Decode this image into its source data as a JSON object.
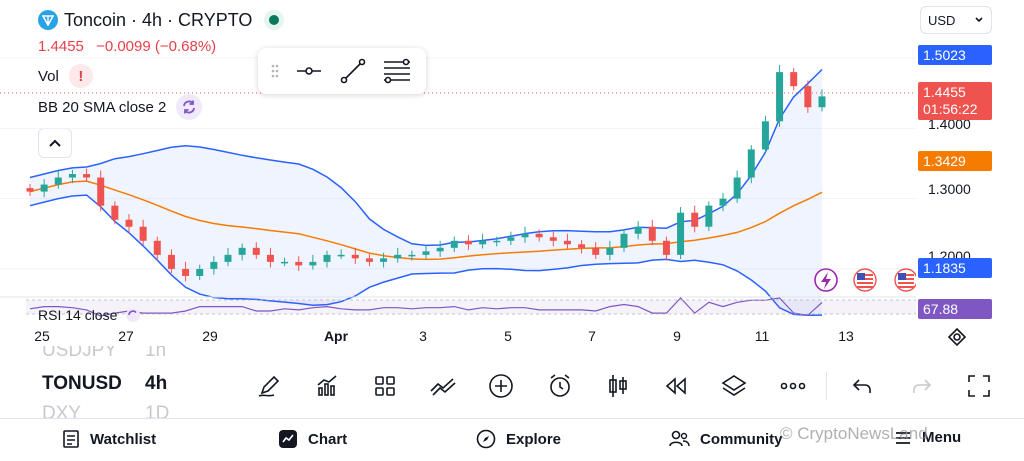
{
  "header": {
    "symbol_title": "Toncoin · 4h · CRYPTO",
    "price": "1.4455",
    "change": "−0.0099 (−0.68%)",
    "currency": "USD"
  },
  "indicators": {
    "volume_label": "Vol",
    "volume_warning": "!",
    "bb_label": "BB 20 SMA close 2",
    "rsi_label": "RSI 14 close"
  },
  "price_axis": {
    "bb_upper_tag": "1.5023",
    "last_price_tag": "1.4455",
    "countdown": "01:56:22",
    "bb_basis_tag": "1.3429",
    "bb_lower_tag": "1.1835",
    "rsi_tag": "67.88",
    "labels": [
      "1.4000",
      "1.3000",
      "1.2000"
    ]
  },
  "date_axis": [
    "25",
    "27",
    "29",
    "Apr",
    "3",
    "5",
    "7",
    "9",
    "11",
    "13"
  ],
  "symbols": [
    {
      "name": "USDJPY",
      "value": "1h"
    },
    {
      "name": "TONUSD",
      "value": "4h"
    },
    {
      "name": "DXY",
      "value": "1D"
    }
  ],
  "toolbar_tools": [
    "pencil-icon",
    "indicators-icon",
    "layout-icon",
    "compare-icon",
    "add-icon",
    "alert-clock-icon",
    "candle-type-icon",
    "replay-icon",
    "layers-icon",
    "more-icon",
    "undo-icon",
    "redo-icon",
    "fullscreen-icon"
  ],
  "nav": {
    "watchlist": "Watchlist",
    "chart": "Chart",
    "explore": "Explore",
    "community": "Community",
    "menu": "Menu"
  },
  "watermark": "© CryptoNewsLand",
  "colors": {
    "up": "#26a69a",
    "down": "#ef5350",
    "bb_band": "#2962ff",
    "bb_basis": "#f57c00",
    "rsi": "#7e57c2",
    "accent_purple": "#9c27b0"
  },
  "chart_data": {
    "type": "candlestick",
    "symbol": "TONUSD",
    "timeframe": "4h",
    "price_range": [
      1.17,
      1.52
    ],
    "candles_close": [
      1.31,
      1.32,
      1.33,
      1.335,
      1.33,
      1.29,
      1.27,
      1.26,
      1.24,
      1.22,
      1.2,
      1.19,
      1.2,
      1.21,
      1.22,
      1.23,
      1.22,
      1.21,
      1.21,
      1.205,
      1.21,
      1.22,
      1.22,
      1.215,
      1.21,
      1.215,
      1.22,
      1.22,
      1.225,
      1.23,
      1.24,
      1.235,
      1.24,
      1.24,
      1.245,
      1.25,
      1.245,
      1.24,
      1.235,
      1.23,
      1.22,
      1.23,
      1.25,
      1.26,
      1.24,
      1.22,
      1.28,
      1.26,
      1.29,
      1.3,
      1.33,
      1.37,
      1.41,
      1.48,
      1.46,
      1.43,
      1.4455
    ],
    "bb_upper_last": 1.5023,
    "bb_basis_last": 1.3429,
    "bb_lower_last": 1.1835,
    "rsi_last": 67.88
  }
}
